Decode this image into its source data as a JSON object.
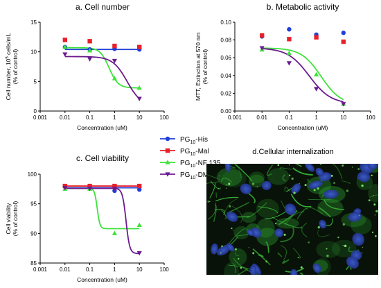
{
  "legend": [
    {
      "name": "PG",
      "sub": "10",
      "suffix": "-His",
      "color": "#1f3fd9",
      "marker": "circle"
    },
    {
      "name": "PG",
      "sub": "10",
      "suffix": "-Mal",
      "color": "#e8202a",
      "marker": "square"
    },
    {
      "name": "PG",
      "sub": "10",
      "suffix": "-NF 135",
      "color": "#3ee23a",
      "marker": "triangle"
    },
    {
      "name": "PG",
      "sub": "10",
      "suffix": "-DMA",
      "color": "#6b1a8f",
      "marker": "triangle-down"
    }
  ],
  "micrograph": {
    "title": "d.Cellular internalization"
  },
  "chart_data": [
    {
      "type": "scatter",
      "title": "a. Cell number",
      "xlabel": "Concentration (uM)",
      "ylabel_line1": "Cell number, 10",
      "ylabel_sup": "5",
      "ylabel_rest": " cells/mL",
      "ylabel_line2": "(% of control)",
      "xscale": "log",
      "xlim": [
        0.001,
        100
      ],
      "ylim": [
        0,
        15
      ],
      "xticks": [
        "0.001",
        "0.01",
        "0.1",
        "1",
        "10",
        "100"
      ],
      "yticks": [
        "0",
        "5",
        "10",
        "15"
      ],
      "series": [
        {
          "x": [
            0.01,
            0.1,
            1,
            10
          ],
          "y": [
            10.8,
            10.4,
            10.5,
            10.4
          ],
          "fit": "flat",
          "fit_value": 10.4
        },
        {
          "x": [
            0.01,
            0.1,
            1,
            10
          ],
          "y": [
            12.0,
            11.8,
            11.0,
            10.8
          ]
        },
        {
          "x": [
            0.01,
            0.1,
            1,
            10
          ],
          "y": [
            10.8,
            10.2,
            5.5,
            3.9
          ],
          "fit": "sigmoid",
          "top": 10.7,
          "bottom": 3.9,
          "ec50": 0.6,
          "hill": 2.4
        },
        {
          "x": [
            0.01,
            0.1,
            1,
            10
          ],
          "y": [
            9.6,
            8.8,
            8.5,
            2.1
          ],
          "fit": "sigmoid",
          "top": 9.2,
          "bottom": 0.8,
          "ec50": 3.2,
          "hill": 1.5
        }
      ]
    },
    {
      "type": "scatter",
      "title": "b. Metabolic activity",
      "xlabel": "Concentration (uM)",
      "ylabel_line1": "MTT, Extinction at 570 nm",
      "ylabel_line2": "(% of control)",
      "xscale": "log",
      "xlim": [
        0.001,
        100
      ],
      "ylim": [
        0,
        0.1
      ],
      "xticks": [
        "0.001",
        "0.01",
        "0.1",
        "1",
        "10",
        "100"
      ],
      "yticks": [
        "0.00",
        "0.02",
        "0.04",
        "0.06",
        "0.08",
        "0.10"
      ],
      "series": [
        {
          "x": [
            0.01,
            0.1,
            1,
            10
          ],
          "y": [
            0.084,
            0.092,
            0.086,
            0.088
          ]
        },
        {
          "x": [
            0.01,
            0.1,
            1,
            10
          ],
          "y": [
            0.085,
            0.081,
            0.083,
            0.078
          ]
        },
        {
          "x": [
            0.01,
            0.1,
            1,
            10
          ],
          "y": [
            0.069,
            0.065,
            0.041,
            0.008
          ],
          "fit": "sigmoid",
          "top": 0.071,
          "bottom": 0.007,
          "ec50": 1.5,
          "hill": 1.2
        },
        {
          "x": [
            0.01,
            0.1,
            1,
            10
          ],
          "y": [
            0.071,
            0.054,
            0.025,
            0.008
          ],
          "fit": "sigmoid",
          "top": 0.071,
          "bottom": 0.008,
          "ec50": 0.55,
          "hill": 1.1
        }
      ]
    },
    {
      "type": "scatter",
      "title": "c. Cell viability",
      "xlabel": "Concentration (uM)",
      "ylabel_line1": "Cell viability",
      "ylabel_line2": "(% of control)",
      "xscale": "log",
      "xlim": [
        0.001,
        100
      ],
      "ylim": [
        85,
        100
      ],
      "xticks": [
        "0.001",
        "0.01",
        "0.1",
        "1",
        "10",
        "100"
      ],
      "yticks": [
        "85",
        "90",
        "95",
        "100"
      ],
      "series": [
        {
          "x": [
            0.01,
            0.1,
            1,
            10
          ],
          "y": [
            97.9,
            97.8,
            97.2,
            97.4
          ],
          "fit": "flat",
          "fit_value": 97.7
        },
        {
          "x": [
            0.01,
            0.1,
            1,
            10
          ],
          "y": [
            98.0,
            98.0,
            98.0,
            98.0
          ],
          "fit": "flat",
          "fit_value": 98.0
        },
        {
          "x": [
            0.01,
            0.1,
            1,
            10
          ],
          "y": [
            97.5,
            97.5,
            90.0,
            91.4
          ],
          "fit": "sigmoid",
          "top": 97.6,
          "bottom": 90.8,
          "ec50": 0.2,
          "hill": 8
        },
        {
          "x": [
            0.01,
            0.1,
            1,
            10
          ],
          "y": [
            97.7,
            97.6,
            97.6,
            86.7
          ],
          "fit": "sigmoid",
          "top": 97.6,
          "bottom": 86.6,
          "ec50": 2.9,
          "hill": 6
        }
      ]
    }
  ]
}
